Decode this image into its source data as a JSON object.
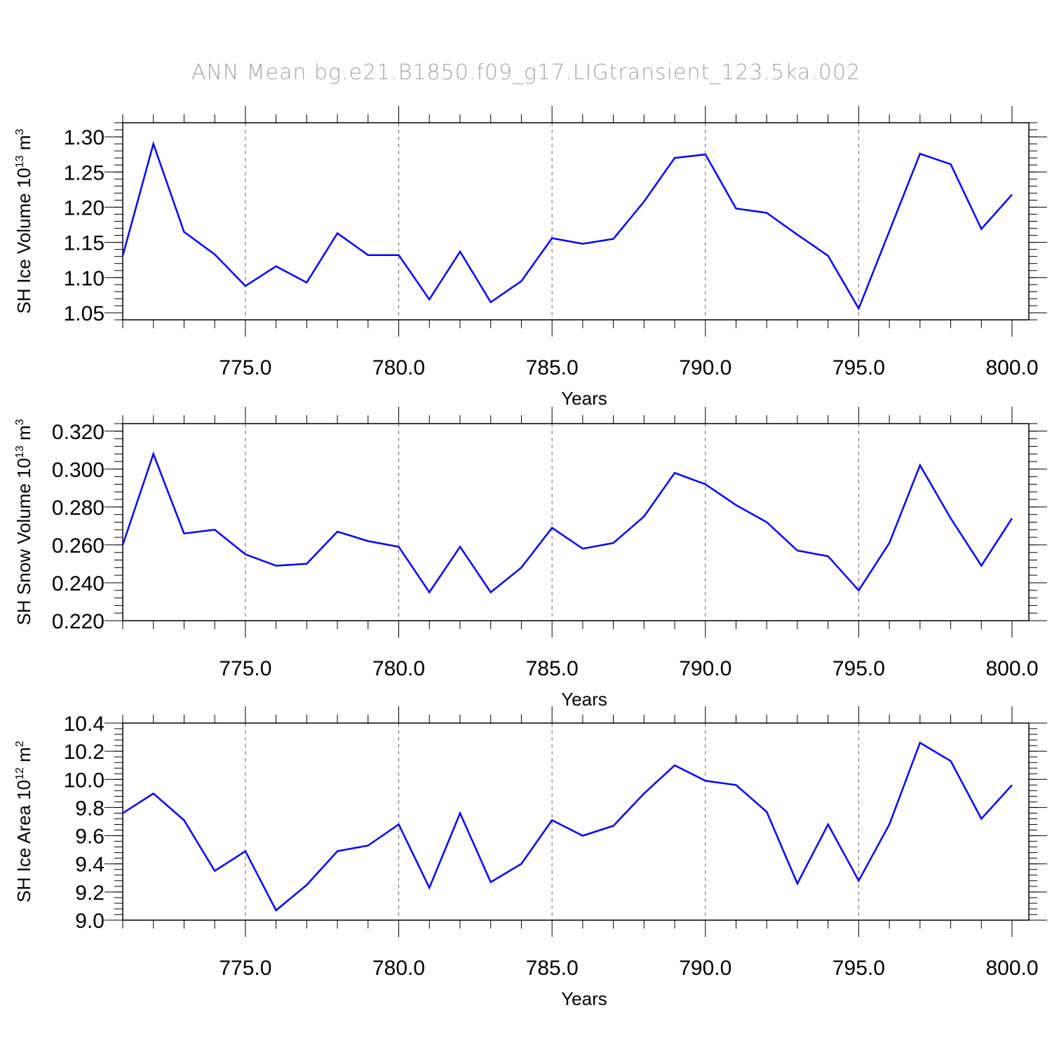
{
  "figure": {
    "title": "ANN Mean bg.e21.B1850.f09_g17.LIGtransient_123.5ka.002"
  },
  "chart_data": [
    {
      "type": "line",
      "ylabel_main": "SH Ice Volume 10",
      "ylabel_exp": "13",
      "ylabel_unit": " m",
      "ylabel_unit_exp": "3",
      "xlabel": "Years",
      "xlim": [
        771,
        800
      ],
      "ylim": [
        1.04,
        1.32
      ],
      "x_ticks": [
        775,
        780,
        785,
        790,
        795,
        800
      ],
      "x_tick_labels": [
        "775.0",
        "780.0",
        "785.0",
        "790.0",
        "795.0",
        "800.0"
      ],
      "y_ticks": [
        1.05,
        1.1,
        1.15,
        1.2,
        1.25,
        1.3
      ],
      "y_tick_labels": [
        "1.05",
        "1.10",
        "1.15",
        "1.20",
        "1.25",
        "1.30"
      ],
      "y_minor_step": 0.01,
      "grid_x": true,
      "color": "#0000ff",
      "x": [
        771,
        772,
        773,
        774,
        775,
        776,
        777,
        778,
        779,
        780,
        781,
        782,
        783,
        784,
        785,
        786,
        787,
        788,
        789,
        790,
        791,
        792,
        793,
        794,
        795,
        796,
        797,
        798,
        799,
        800
      ],
      "values": [
        1.131,
        1.29,
        1.165,
        1.133,
        1.088,
        1.116,
        1.093,
        1.163,
        1.132,
        1.132,
        1.069,
        1.137,
        1.065,
        1.095,
        1.156,
        1.148,
        1.155,
        1.208,
        1.27,
        1.275,
        1.198,
        1.192,
        1.161,
        1.131,
        1.056,
        1.166,
        1.276,
        1.261,
        1.169,
        1.218
      ]
    },
    {
      "type": "line",
      "ylabel_main": "SH Snow Volume 10",
      "ylabel_exp": "13",
      "ylabel_unit": " m",
      "ylabel_unit_exp": "3",
      "xlabel": "Years",
      "xlim": [
        771,
        800
      ],
      "ylim": [
        0.22,
        0.324
      ],
      "x_ticks": [
        775,
        780,
        785,
        790,
        795,
        800
      ],
      "x_tick_labels": [
        "775.0",
        "780.0",
        "785.0",
        "790.0",
        "795.0",
        "800.0"
      ],
      "y_ticks": [
        0.22,
        0.24,
        0.26,
        0.28,
        0.3,
        0.32
      ],
      "y_tick_labels": [
        "0.220",
        "0.240",
        "0.260",
        "0.280",
        "0.300",
        "0.320"
      ],
      "y_minor_step": 0.004,
      "grid_x": true,
      "color": "#0000ff",
      "x": [
        771,
        772,
        773,
        774,
        775,
        776,
        777,
        778,
        779,
        780,
        781,
        782,
        783,
        784,
        785,
        786,
        787,
        788,
        789,
        790,
        791,
        792,
        793,
        794,
        795,
        796,
        797,
        798,
        799,
        800
      ],
      "values": [
        0.26,
        0.308,
        0.266,
        0.268,
        0.255,
        0.249,
        0.25,
        0.267,
        0.262,
        0.259,
        0.235,
        0.259,
        0.235,
        0.248,
        0.269,
        0.258,
        0.261,
        0.275,
        0.298,
        0.292,
        0.281,
        0.272,
        0.257,
        0.254,
        0.236,
        0.261,
        0.302,
        0.274,
        0.249,
        0.274
      ]
    },
    {
      "type": "line",
      "ylabel_main": "SH Ice Area 10",
      "ylabel_exp": "12",
      "ylabel_unit": " m",
      "ylabel_unit_exp": "2",
      "xlabel": "Years",
      "xlim": [
        771,
        800
      ],
      "ylim": [
        9.0,
        10.4
      ],
      "x_ticks": [
        775,
        780,
        785,
        790,
        795,
        800
      ],
      "x_tick_labels": [
        "775.0",
        "780.0",
        "785.0",
        "790.0",
        "795.0",
        "800.0"
      ],
      "y_ticks": [
        9.0,
        9.2,
        9.4,
        9.6,
        9.8,
        10.0,
        10.2,
        10.4
      ],
      "y_tick_labels": [
        "9.0",
        "9.2",
        "9.4",
        "9.6",
        "9.8",
        "10.0",
        "10.2",
        "10.4"
      ],
      "y_minor_step": 0.04,
      "grid_x": true,
      "color": "#0000ff",
      "x": [
        771,
        772,
        773,
        774,
        775,
        776,
        777,
        778,
        779,
        780,
        781,
        782,
        783,
        784,
        785,
        786,
        787,
        788,
        789,
        790,
        791,
        792,
        793,
        794,
        795,
        796,
        797,
        798,
        799,
        800
      ],
      "values": [
        9.76,
        9.9,
        9.71,
        9.35,
        9.49,
        9.07,
        9.25,
        9.49,
        9.53,
        9.68,
        9.23,
        9.76,
        9.27,
        9.4,
        9.71,
        9.6,
        9.67,
        9.9,
        10.1,
        9.99,
        9.96,
        9.77,
        9.26,
        9.68,
        9.28,
        9.68,
        10.26,
        10.13,
        9.72,
        9.96
      ]
    }
  ]
}
